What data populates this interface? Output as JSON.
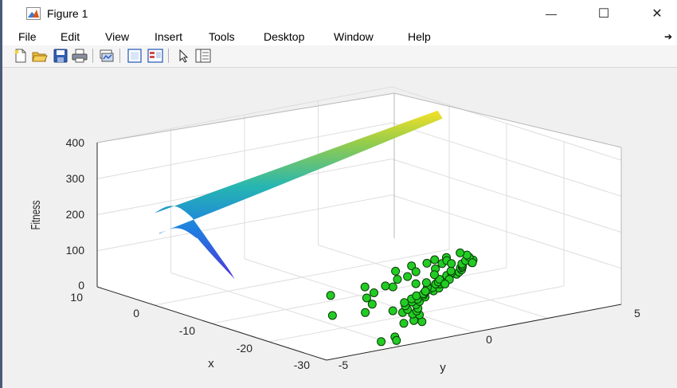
{
  "window": {
    "title": "Figure 1",
    "minimize_glyph": "—",
    "maximize_glyph": "☐",
    "close_glyph": "✕"
  },
  "menu": {
    "items": [
      "File",
      "Edit",
      "View",
      "Insert",
      "Tools",
      "Desktop",
      "Window",
      "Help"
    ],
    "overflow_glyph": "➔"
  },
  "toolbar": {
    "icons": [
      "new-figure-icon",
      "open-file-icon",
      "save-icon",
      "print-icon",
      "link-plot-icon",
      "hide-plot-tools-icon",
      "show-plot-tools-icon",
      "edit-plot-arrow-icon",
      "property-editor-icon"
    ]
  },
  "colors": {
    "window_bg": "#ffffff",
    "figure_bg": "#f0f0f0",
    "axes_bg": "#ffffff",
    "grid": "#dedede",
    "marker_fill": "#22cc22",
    "marker_edge": "#0a3a0a",
    "surface_high": "#f5e020",
    "surface_mid": "#22b5b0",
    "surface_low": "#4830d8"
  },
  "chart_data": {
    "type": "scatter",
    "plot_kind": "3-D surface with scatter population",
    "zlabel": "Fitness",
    "xlabel": "x",
    "ylabel": "y",
    "x_ticks": [
      "10",
      "0",
      "-10",
      "-20",
      "-30"
    ],
    "y_ticks": [
      "-5",
      "0",
      "5"
    ],
    "z_ticks": [
      "400",
      "300",
      "200",
      "100",
      "0"
    ],
    "xlim": [
      -30,
      10
    ],
    "ylim": [
      -5,
      5
    ],
    "zlim": [
      0,
      400
    ],
    "grid": true,
    "surface": {
      "colormap": "parula",
      "profile_xy": [
        [
          -8,
          -4
        ],
        [
          -4,
          -4.5
        ],
        [
          0,
          -5
        ],
        [
          2,
          5
        ]
      ],
      "z_profile": [
        120,
        255,
        255,
        375
      ],
      "z_min": 120,
      "z_max": 375
    },
    "points": [
      [
        -26.5,
        -2.0
      ],
      [
        -27.2,
        -2.6
      ],
      [
        -27.8,
        -2.2
      ],
      [
        -22.4,
        -0.9
      ],
      [
        -23.0,
        -0.4
      ],
      [
        -22.1,
        -0.5
      ],
      [
        -20.5,
        0.0
      ],
      [
        -19.8,
        -0.1
      ],
      [
        -19.0,
        0.2
      ],
      [
        -18.6,
        -0.2
      ],
      [
        -18.2,
        0.4
      ],
      [
        -17.9,
        0.1
      ],
      [
        -16.8,
        0.6
      ],
      [
        -16.5,
        0.3
      ],
      [
        -15.9,
        0.9
      ],
      [
        -15.6,
        0.7
      ],
      [
        -15.0,
        1.0
      ],
      [
        -14.8,
        1.3
      ],
      [
        -14.5,
        0.9
      ],
      [
        -14.0,
        1.4
      ],
      [
        -13.8,
        1.2
      ],
      [
        -13.5,
        1.5
      ],
      [
        -13.2,
        1.9
      ],
      [
        -12.9,
        1.7
      ],
      [
        -12.6,
        2.2
      ],
      [
        -12.4,
        1.9
      ],
      [
        -12.0,
        2.1
      ],
      [
        -11.6,
        2.0
      ],
      [
        -11.2,
        2.5
      ],
      [
        -11.0,
        2.4
      ],
      [
        -10.6,
        2.7
      ],
      [
        -10.4,
        2.6
      ],
      [
        -10.2,
        2.8
      ],
      [
        -9.9,
        2.3
      ],
      [
        -9.6,
        2.8
      ],
      [
        -9.2,
        3.2
      ],
      [
        -9.0,
        3.5
      ],
      [
        -8.8,
        3.2
      ],
      [
        -8.4,
        3.7
      ],
      [
        -8.1,
        3.5
      ],
      [
        -7.8,
        3.9
      ],
      [
        -7.5,
        3.6
      ],
      [
        -7.1,
        4.0
      ],
      [
        -6.9,
        4.1
      ],
      [
        -6.4,
        4.2
      ],
      [
        -6.0,
        4.6
      ],
      [
        -5.8,
        4.3
      ],
      [
        -5.2,
        4.8
      ],
      [
        -4.9,
        4.6
      ],
      [
        -4.0,
        4.9
      ],
      [
        -3.1,
        5.0
      ],
      [
        -15.1,
        -1.9
      ],
      [
        -9.2,
        1.3
      ],
      [
        -8.1,
        -0.6
      ],
      [
        -7.4,
        0.7
      ],
      [
        -2.6,
        4.4
      ],
      [
        -5.8,
        3.4
      ],
      [
        -11.3,
        0.0
      ],
      [
        -10.3,
        3.0
      ],
      [
        -6.6,
        2.3
      ],
      [
        -4.0,
        2.4
      ],
      [
        -3.2,
        3.1
      ],
      [
        -6.9,
        1.9
      ],
      [
        -5.5,
        2.8
      ],
      [
        -4.4,
        3.9
      ],
      [
        -12.8,
        1.7
      ],
      [
        -2.6,
        4.0
      ],
      [
        -6.1,
        4.6
      ],
      [
        -3.7,
        4.2
      ],
      [
        -7.7,
        3.0
      ],
      [
        -9.6,
        2.0
      ],
      [
        -17.4,
        -0.3
      ],
      [
        -16.2,
        -1.0
      ],
      [
        -15.3,
        0.5
      ],
      [
        -13.8,
        -0.3
      ],
      [
        -11.6,
        2.6
      ],
      [
        -10.0,
        0.5
      ],
      [
        -8.4,
        1.2
      ],
      [
        -5.0,
        4.1
      ],
      [
        -3.3,
        3.6
      ],
      [
        -1.9,
        5.0
      ]
    ]
  }
}
